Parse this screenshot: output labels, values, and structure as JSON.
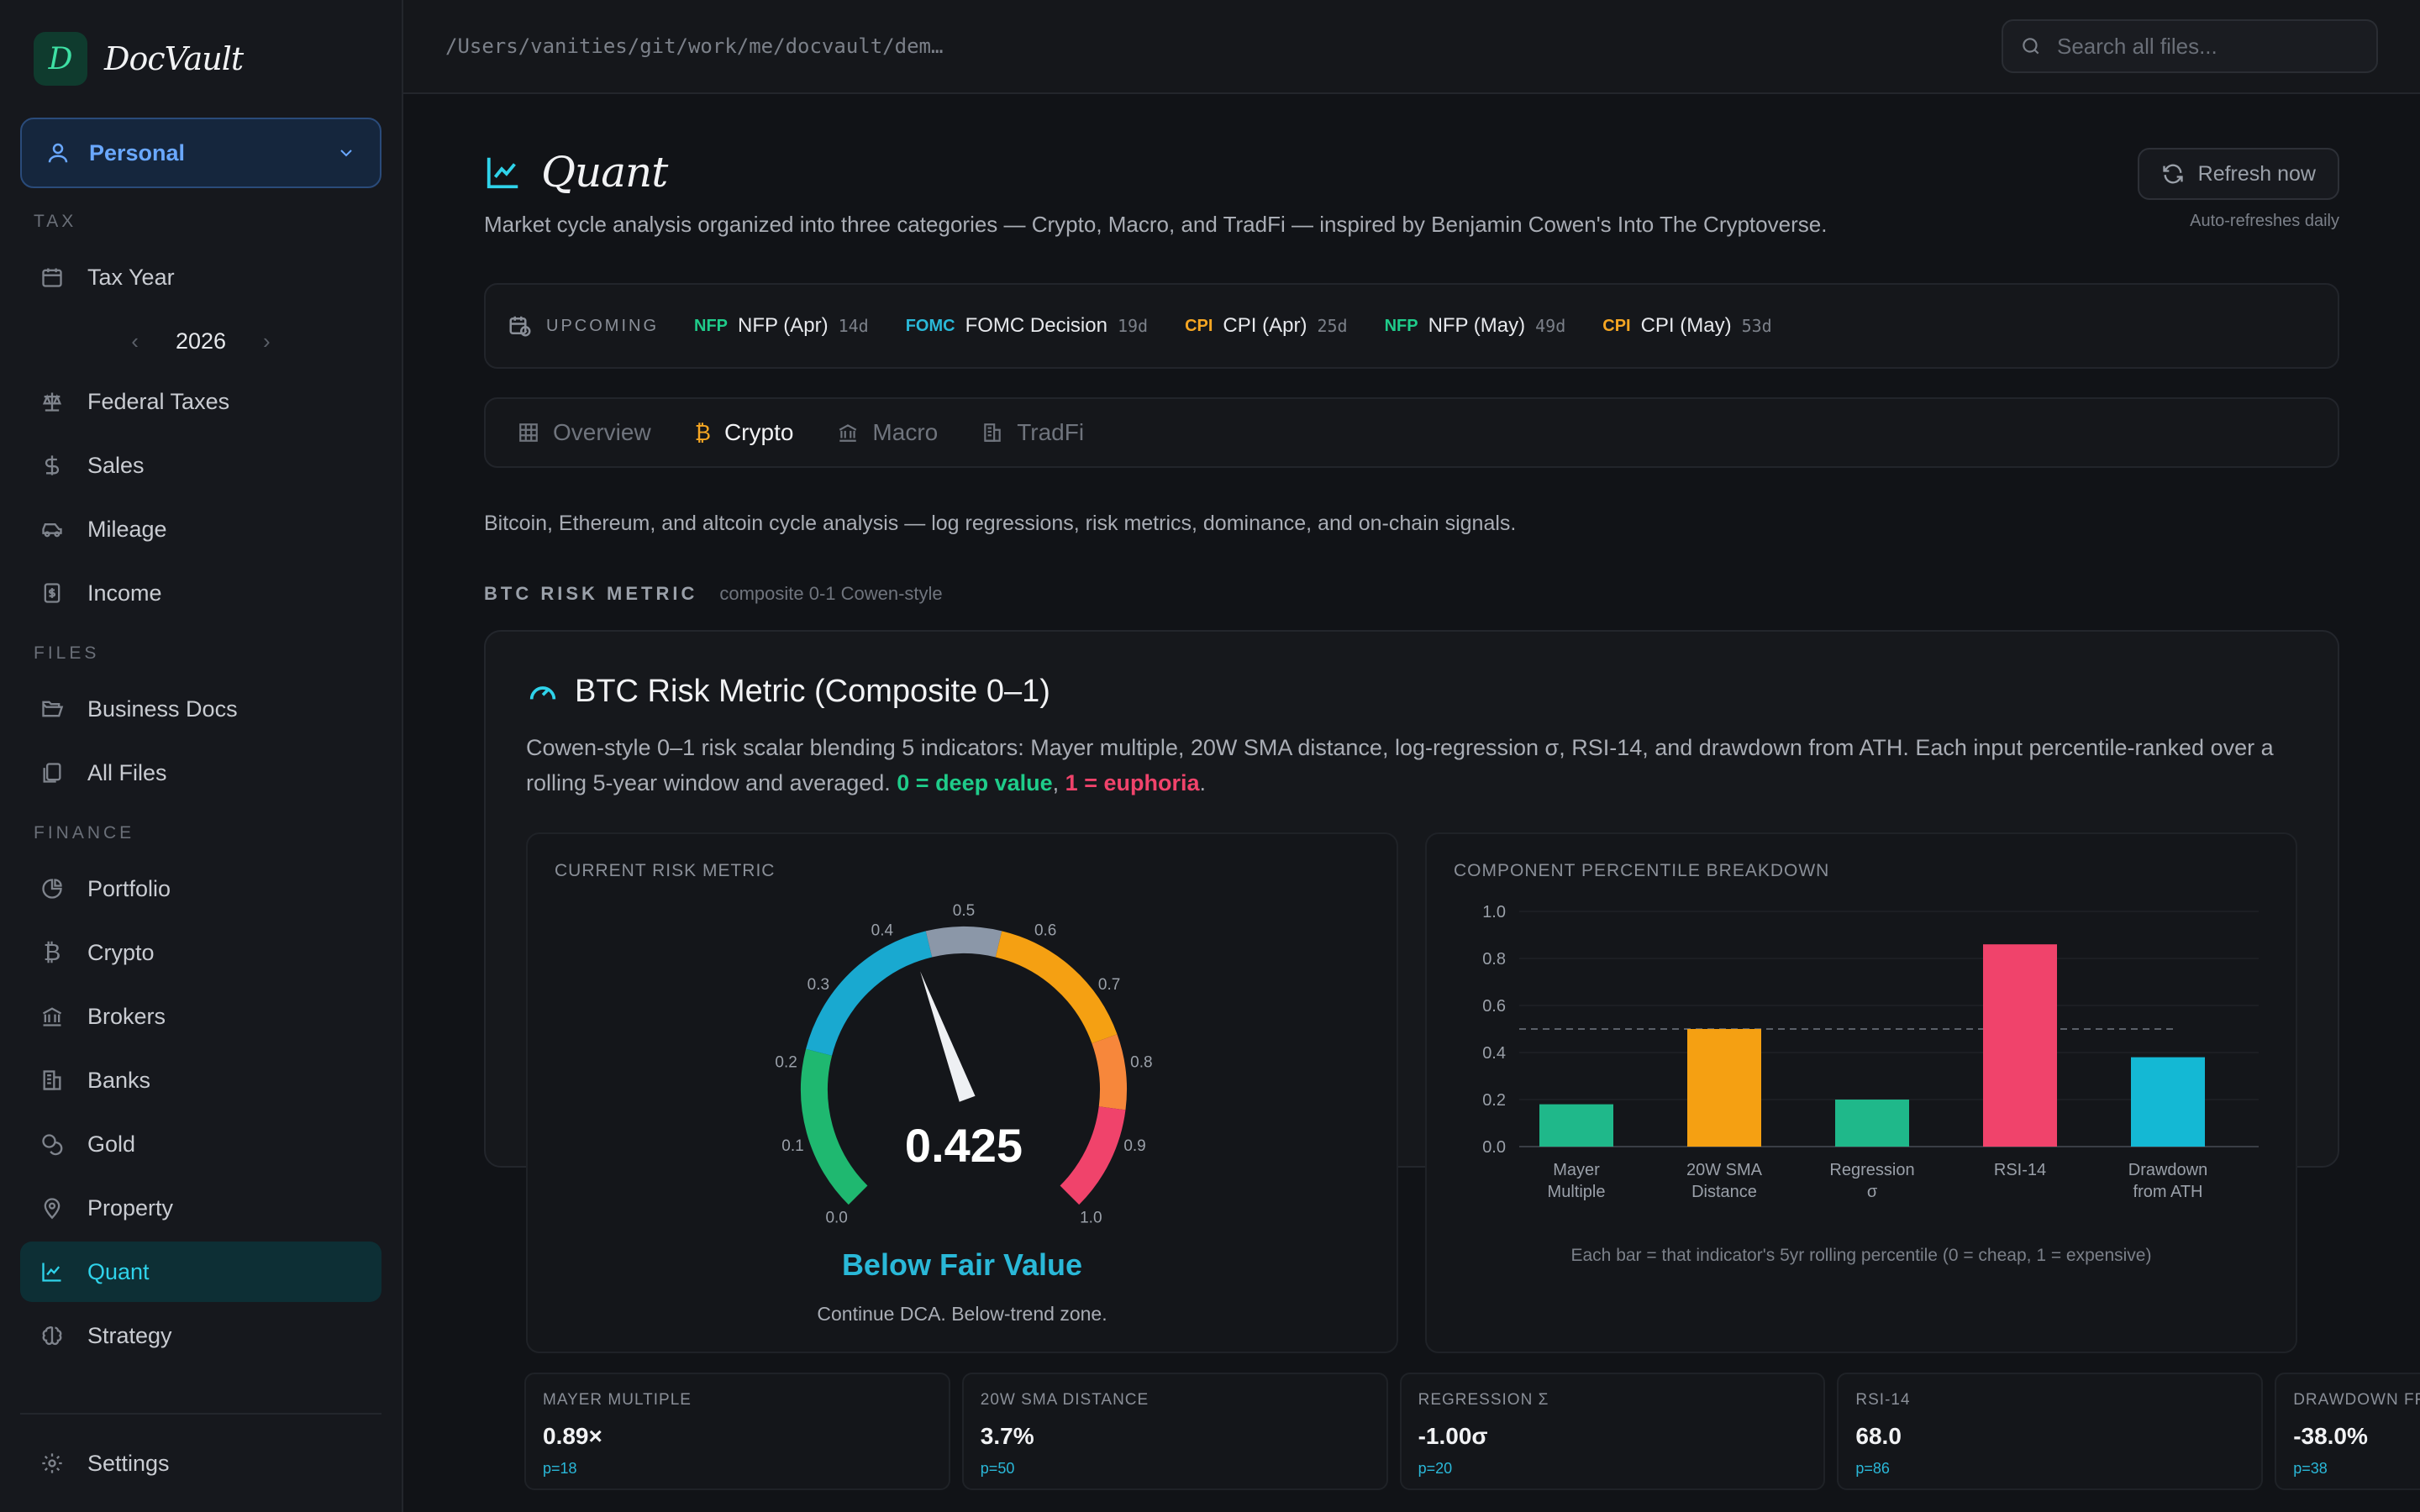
{
  "brand": {
    "logo_letter": "D",
    "name": "DocVault"
  },
  "profile": {
    "label": "Personal"
  },
  "sidebar": {
    "sections": {
      "tax": "TAX",
      "files": "FILES",
      "finance": "FINANCE"
    },
    "tax_year": "Tax Year",
    "year": "2026",
    "tax_items": [
      "Federal Taxes",
      "Sales",
      "Mileage",
      "Income"
    ],
    "file_items": [
      "Business Docs",
      "All Files"
    ],
    "finance_items": [
      "Portfolio",
      "Crypto",
      "Brokers",
      "Banks",
      "Gold",
      "Property",
      "Quant",
      "Strategy"
    ],
    "settings": "Settings",
    "active": "Quant"
  },
  "topbar": {
    "path": "/Users/vanities/git/work/me/docvault/dem…",
    "search_placeholder": "Search all files..."
  },
  "page": {
    "title": "Quant",
    "subtitle": "Market cycle analysis organized into three categories — Crypto, Macro, and TradFi — inspired by Benjamin Cowen's Into The Cryptoverse.",
    "refresh": "Refresh now",
    "auto": "Auto-refreshes daily"
  },
  "upcoming": {
    "label": "UPCOMING",
    "events": [
      {
        "tag": "NFP",
        "name": "NFP (Apr)",
        "days": "14d",
        "color": "#1fcc8a"
      },
      {
        "tag": "FOMC",
        "name": "FOMC Decision",
        "days": "19d",
        "color": "#2ab8d8"
      },
      {
        "tag": "CPI",
        "name": "CPI (Apr)",
        "days": "25d",
        "color": "#f5a623"
      },
      {
        "tag": "NFP",
        "name": "NFP (May)",
        "days": "49d",
        "color": "#1fcc8a"
      },
      {
        "tag": "CPI",
        "name": "CPI (May)",
        "days": "53d",
        "color": "#f5a623"
      }
    ]
  },
  "tabs": [
    "Overview",
    "Crypto",
    "Macro",
    "TradFi"
  ],
  "active_tab": "Crypto",
  "crypto": {
    "description": "Bitcoin, Ethereum, and altcoin cycle analysis — log regressions, risk metrics, dominance, and on-chain signals.",
    "section_key": "BTC RISK METRIC",
    "section_sub": "composite 0-1 Cowen-style",
    "card_title": "BTC Risk Metric (Composite 0–1)",
    "card_desc": "Cowen-style 0–1 risk scalar blending 5 indicators: Mayer multiple, 20W SMA distance, log-regression σ, RSI-14, and drawdown from ATH. Each input percentile-ranked over a rolling 5-year window and averaged.",
    "deep_value": "0 = deep value",
    "sep": ",",
    "euphoria": "1 = euphoria",
    "period": ".",
    "gauge_label": "CURRENT RISK METRIC",
    "risk_value": "0.425",
    "risk_numeric": 0.425,
    "risk_label": "Below Fair Value",
    "risk_note": "Continue DCA. Below-trend zone.",
    "gauge_ticks": [
      "0.0",
      "0.1",
      "0.2",
      "0.3",
      "0.4",
      "0.5",
      "0.6",
      "0.7",
      "0.8",
      "0.9",
      "1.0"
    ],
    "chart_label": "COMPONENT PERCENTILE BREAKDOWN",
    "chart_note": "Each bar = that indicator's 5yr rolling percentile (0 = cheap, 1 = expensive)"
  },
  "stats": [
    {
      "key": "MAYER MULTIPLE",
      "value": "0.89×",
      "p": "p=18"
    },
    {
      "key": "20W SMA DISTANCE",
      "value": "3.7%",
      "p": "p=50"
    },
    {
      "key": "REGRESSION Σ",
      "value": "-1.00σ",
      "p": "p=20"
    },
    {
      "key": "RSI-14",
      "value": "68.0",
      "p": "p=86"
    },
    {
      "key": "DRAWDOWN FROM ATH",
      "value": "-38.0%",
      "p": "p=38"
    }
  ],
  "chart_data": {
    "type": "bar",
    "categories": [
      [
        "Mayer",
        "Multiple"
      ],
      [
        "20W SMA",
        "Distance"
      ],
      [
        "Regression",
        "σ"
      ],
      [
        "RSI-14"
      ],
      [
        "Drawdown",
        "from ATH"
      ]
    ],
    "values": [
      0.18,
      0.5,
      0.2,
      0.86,
      0.38
    ],
    "colors": [
      "#1fb88a",
      "#f5a012",
      "#1fb88a",
      "#f0436b",
      "#14b8d4"
    ],
    "y_ticks": [
      "0.0",
      "0.2",
      "0.4",
      "0.6",
      "0.8",
      "1.0"
    ],
    "ylim": [
      0,
      1
    ],
    "reference_line": 0.5,
    "grid": true
  }
}
